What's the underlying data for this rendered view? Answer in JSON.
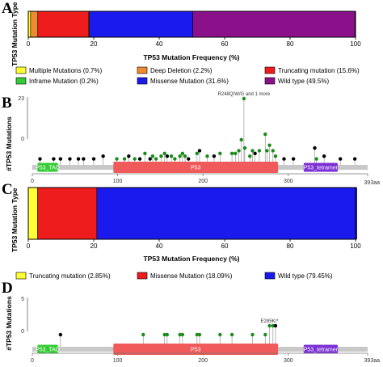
{
  "panels": [
    {
      "letter": "A",
      "kind": "stacked-bar",
      "ylabel": "TP53 Mutation Type",
      "xlabel": "TP53 Mutation Frequency (%)",
      "xticks": [
        "0",
        "20",
        "40",
        "60",
        "80",
        "100"
      ],
      "legend_cols": 3
    },
    {
      "letter": "B",
      "kind": "lollipop",
      "ylabel": "#TP53 Mutations",
      "ymax_label": "23",
      "ymin_label": "0",
      "protein_length_label": "393aa",
      "xticks": [
        "0",
        "100",
        "200",
        "300"
      ],
      "annotation": "R248Q/W/G and 1 more",
      "domains": [
        {
          "name": "P53_TAD",
          "start": 6,
          "end": 30,
          "color": "#33cc33"
        },
        {
          "name": "P53",
          "start": 95,
          "end": 288,
          "color": "#f05a5a"
        },
        {
          "name": "P53_tetramer",
          "start": 318,
          "end": 358,
          "color": "#7b2fd4"
        }
      ]
    },
    {
      "letter": "C",
      "kind": "stacked-bar",
      "ylabel": "TP53 Mutation Type",
      "xlabel": "TP53 Mutation Frequency (%)",
      "xticks": [
        "0",
        "20",
        "40",
        "60",
        "80",
        "100"
      ],
      "legend_cols": 3
    },
    {
      "letter": "D",
      "kind": "lollipop",
      "ylabel": "#TP53 Mutations",
      "ymax_label": "5",
      "ymin_label": "0",
      "protein_length_label": "393aa",
      "xticks": [
        "0",
        "100",
        "200",
        "300"
      ],
      "annotation": "E285K/*",
      "domains": [
        {
          "name": "P53_TAD",
          "start": 6,
          "end": 30,
          "color": "#33cc33"
        },
        {
          "name": "P53",
          "start": 95,
          "end": 288,
          "color": "#f05a5a"
        },
        {
          "name": "P53_tetramer",
          "start": 318,
          "end": 358,
          "color": "#7b2fd4"
        }
      ]
    }
  ],
  "chart_data": [
    {
      "type": "bar",
      "orientation": "horizontal-stacked",
      "title": "",
      "ylabel": "TP53 Mutation Type",
      "xlabel": "TP53 Mutation Frequency (%)",
      "xlim": [
        0,
        100
      ],
      "legend_position": "bottom",
      "series": [
        {
          "name": "Multiple Mutations (0.7%)",
          "value": 0.7,
          "color": "#ffff33"
        },
        {
          "name": "Deep Deletion (2.2%)",
          "value": 2.2,
          "color": "#f08a30"
        },
        {
          "name": "Truncating mutation (15.6%)",
          "value": 15.6,
          "color": "#ee1c1c"
        },
        {
          "name": "Inframe Mutation (0.2%)",
          "value": 0.2,
          "color": "#33cc33"
        },
        {
          "name": "Missense Mutation (31.6%)",
          "value": 31.6,
          "color": "#1a1aee"
        },
        {
          "name": "Wild type (49.5%)",
          "value": 49.5,
          "color": "#8a118a"
        }
      ],
      "stack_order": [
        0,
        1,
        2,
        3,
        4,
        5
      ]
    },
    {
      "type": "scatter",
      "subtype": "lollipop",
      "ylabel": "#TP53 Mutations",
      "ylim": [
        0,
        23
      ],
      "xlim": [
        0,
        393
      ],
      "points": [
        {
          "x": 9,
          "y": 1,
          "color": "#000000"
        },
        {
          "x": 25,
          "y": 1,
          "color": "#000000"
        },
        {
          "x": 33,
          "y": 1,
          "color": "#000000"
        },
        {
          "x": 44,
          "y": 1,
          "color": "#000000"
        },
        {
          "x": 54,
          "y": 1,
          "color": "#000000"
        },
        {
          "x": 60,
          "y": 1,
          "color": "#000000"
        },
        {
          "x": 72,
          "y": 1,
          "color": "#000000"
        },
        {
          "x": 83,
          "y": 2,
          "color": "#000000"
        },
        {
          "x": 99,
          "y": 1,
          "color": "#1a8a1a"
        },
        {
          "x": 108,
          "y": 1,
          "color": "#1a8a1a"
        },
        {
          "x": 113,
          "y": 2,
          "color": "#000000"
        },
        {
          "x": 120,
          "y": 1,
          "color": "#1a8a1a"
        },
        {
          "x": 126,
          "y": 1,
          "color": "#000000"
        },
        {
          "x": 132,
          "y": 3,
          "color": "#1a8a1a"
        },
        {
          "x": 138,
          "y": 1,
          "color": "#000000"
        },
        {
          "x": 141,
          "y": 2,
          "color": "#1a8a1a"
        },
        {
          "x": 145,
          "y": 1,
          "color": "#1a8a1a"
        },
        {
          "x": 151,
          "y": 2,
          "color": "#1a8a1a"
        },
        {
          "x": 155,
          "y": 3,
          "color": "#1a8a1a"
        },
        {
          "x": 158,
          "y": 2,
          "color": "#000000"
        },
        {
          "x": 163,
          "y": 2,
          "color": "#1a8a1a"
        },
        {
          "x": 167,
          "y": 1,
          "color": "#1a8a1a"
        },
        {
          "x": 173,
          "y": 2,
          "color": "#1a8a1a"
        },
        {
          "x": 176,
          "y": 3,
          "color": "#1a8a1a"
        },
        {
          "x": 179,
          "y": 2,
          "color": "#1a8a1a"
        },
        {
          "x": 183,
          "y": 1,
          "color": "#000000"
        },
        {
          "x": 193,
          "y": 3,
          "color": "#1a8a1a"
        },
        {
          "x": 196,
          "y": 4,
          "color": "#000000"
        },
        {
          "x": 205,
          "y": 2,
          "color": "#1a8a1a"
        },
        {
          "x": 213,
          "y": 2,
          "color": "#000000"
        },
        {
          "x": 220,
          "y": 3,
          "color": "#1a8a1a"
        },
        {
          "x": 234,
          "y": 3,
          "color": "#1a8a1a"
        },
        {
          "x": 238,
          "y": 3,
          "color": "#1a8a1a"
        },
        {
          "x": 242,
          "y": 4,
          "color": "#1a8a1a"
        },
        {
          "x": 245,
          "y": 8,
          "color": "#1a8a1a"
        },
        {
          "x": 248,
          "y": 23,
          "color": "#1a8a1a"
        },
        {
          "x": 249,
          "y": 5,
          "color": "#1a8a1a"
        },
        {
          "x": 255,
          "y": 2,
          "color": "#1a8a1a"
        },
        {
          "x": 258,
          "y": 4,
          "color": "#1a8a1a"
        },
        {
          "x": 261,
          "y": 3,
          "color": "#000000"
        },
        {
          "x": 266,
          "y": 4,
          "color": "#1a8a1a"
        },
        {
          "x": 273,
          "y": 10,
          "color": "#1a8a1a"
        },
        {
          "x": 275,
          "y": 4,
          "color": "#1a8a1a"
        },
        {
          "x": 278,
          "y": 6,
          "color": "#1a8a1a"
        },
        {
          "x": 282,
          "y": 4,
          "color": "#1a8a1a"
        },
        {
          "x": 285,
          "y": 2,
          "color": "#1a8a1a"
        },
        {
          "x": 295,
          "y": 1,
          "color": "#000000"
        },
        {
          "x": 306,
          "y": 1,
          "color": "#000000"
        },
        {
          "x": 331,
          "y": 5,
          "color": "#000000"
        },
        {
          "x": 333,
          "y": 1,
          "color": "#1a8a1a"
        },
        {
          "x": 342,
          "y": 2,
          "color": "#000000"
        },
        {
          "x": 361,
          "y": 1,
          "color": "#000000"
        },
        {
          "x": 378,
          "y": 1,
          "color": "#000000"
        }
      ]
    },
    {
      "type": "bar",
      "orientation": "horizontal-stacked",
      "title": "",
      "ylabel": "TP53 Mutation Type",
      "xlabel": "TP53 Mutation Frequency (%)",
      "xlim": [
        0,
        100
      ],
      "legend_position": "bottom",
      "series": [
        {
          "name": "Truncating mutation (2.85%)",
          "value": 2.85,
          "color": "#ffff33"
        },
        {
          "name": "Missense Mutation (18.09%)",
          "value": 18.09,
          "color": "#ee1c1c"
        },
        {
          "name": "Wild type (79.45%)",
          "value": 79.45,
          "color": "#1a1aee"
        }
      ]
    },
    {
      "type": "scatter",
      "subtype": "lollipop",
      "ylabel": "#TP53 Mutations",
      "ylim": [
        0,
        5
      ],
      "xlim": [
        0,
        393
      ],
      "points": [
        {
          "x": 33,
          "y": 1,
          "color": "#000000"
        },
        {
          "x": 130,
          "y": 1,
          "color": "#1a8a1a"
        },
        {
          "x": 155,
          "y": 1,
          "color": "#1a8a1a"
        },
        {
          "x": 158,
          "y": 1,
          "color": "#1a8a1a"
        },
        {
          "x": 173,
          "y": 1,
          "color": "#1a8a1a"
        },
        {
          "x": 176,
          "y": 1,
          "color": "#1a8a1a"
        },
        {
          "x": 193,
          "y": 1,
          "color": "#1a8a1a"
        },
        {
          "x": 196,
          "y": 1,
          "color": "#1a8a1a"
        },
        {
          "x": 220,
          "y": 1,
          "color": "#1a8a1a"
        },
        {
          "x": 234,
          "y": 1,
          "color": "#1a8a1a"
        },
        {
          "x": 258,
          "y": 1,
          "color": "#1a8a1a"
        },
        {
          "x": 273,
          "y": 1,
          "color": "#1a8a1a"
        },
        {
          "x": 278,
          "y": 2,
          "color": "#1a8a1a"
        },
        {
          "x": 282,
          "y": 2,
          "color": "#1a8a1a"
        },
        {
          "x": 285,
          "y": 2,
          "color": "#000000"
        }
      ]
    }
  ]
}
